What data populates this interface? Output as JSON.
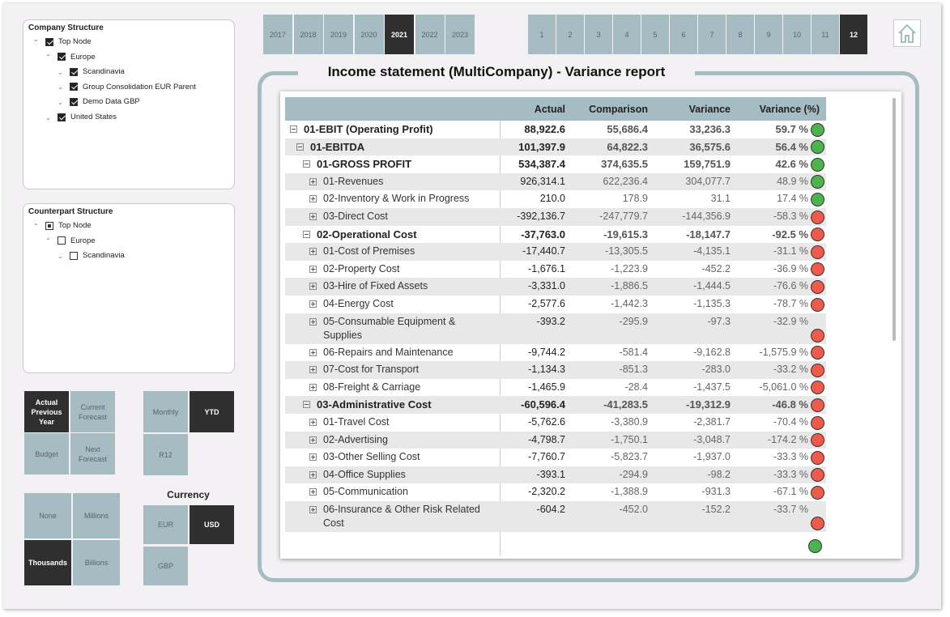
{
  "company_structure": {
    "title": "Company Structure",
    "nodes": [
      {
        "label": "Top Node",
        "level": 0,
        "expanded": true,
        "checked": "yes"
      },
      {
        "label": "Europe",
        "level": 1,
        "expanded": true,
        "checked": "yes"
      },
      {
        "label": "Scandinavia",
        "level": 2,
        "expanded": false,
        "checked": "yes"
      },
      {
        "label": "Group Consolidation EUR Parent",
        "level": 2,
        "expanded": false,
        "checked": "yes"
      },
      {
        "label": "Demo Data GBP",
        "level": 2,
        "expanded": false,
        "checked": "yes"
      },
      {
        "label": "United States",
        "level": 1,
        "expanded": false,
        "checked": "yes"
      }
    ]
  },
  "counterpart_structure": {
    "title": "Counterpart Structure",
    "nodes": [
      {
        "label": "Top Node",
        "level": 0,
        "expanded": true,
        "checked": "partial"
      },
      {
        "label": "Europe",
        "level": 1,
        "expanded": true,
        "checked": "no"
      },
      {
        "label": "Scandinavia",
        "level": 2,
        "expanded": false,
        "checked": "no"
      }
    ]
  },
  "years": {
    "options": [
      "2017",
      "2018",
      "2019",
      "2020",
      "2021",
      "2022",
      "2023"
    ],
    "selected": 4
  },
  "months": {
    "options": [
      "1",
      "2",
      "3",
      "4",
      "5",
      "6",
      "7",
      "8",
      "9",
      "10",
      "11",
      "12"
    ],
    "selected": 11
  },
  "scenario": {
    "options": [
      "Actual Previous Year",
      "Current Forecast",
      "Budget",
      "Next Forecast"
    ],
    "selected": 0
  },
  "period": {
    "options": [
      "Monthly",
      "YTD",
      "R12"
    ],
    "selected": 1
  },
  "scale": {
    "options": [
      "None",
      "Millions",
      "Thousands",
      "Billions"
    ],
    "selected": 2
  },
  "currency": {
    "title": "Currency",
    "options": [
      "EUR",
      "USD",
      "GBP"
    ],
    "selected": 1
  },
  "report": {
    "title": "Income statement (MultiCompany) - Variance report",
    "columns": [
      "Actual",
      "Comparison",
      "Variance",
      "Variance (%)"
    ],
    "rows": [
      {
        "label": "01-EBIT (Operating Profit)",
        "level": 0,
        "bold": true,
        "expanded": true,
        "cells": [
          "88,922.6",
          "55,686.4",
          "33,236.3",
          "59.7 %"
        ],
        "status": "green"
      },
      {
        "label": "01-EBITDA",
        "level": 1,
        "bold": true,
        "expanded": true,
        "cells": [
          "101,397.9",
          "64,822.3",
          "36,575.6",
          "56.4 %"
        ],
        "status": "green"
      },
      {
        "label": "01-GROSS PROFIT",
        "level": 2,
        "bold": true,
        "expanded": true,
        "cells": [
          "534,387.4",
          "374,635.5",
          "159,751.9",
          "42.6 %"
        ],
        "status": "green"
      },
      {
        "label": "01-Revenues",
        "level": 3,
        "bold": false,
        "expanded": false,
        "cells": [
          "926,314.1",
          "622,236.4",
          "304,077.7",
          "48.9 %"
        ],
        "status": "green"
      },
      {
        "label": "02-Inventory & Work in Progress",
        "level": 3,
        "bold": false,
        "expanded": false,
        "cells": [
          "210.0",
          "178.9",
          "31.1",
          "17.4 %"
        ],
        "status": "green"
      },
      {
        "label": "03-Direct Cost",
        "level": 3,
        "bold": false,
        "expanded": false,
        "cells": [
          "-392,136.7",
          "-247,779.7",
          "-144,356.9",
          "-58.3 %"
        ],
        "status": "red"
      },
      {
        "label": "02-Operational Cost",
        "level": 2,
        "bold": true,
        "expanded": true,
        "cells": [
          "-37,763.0",
          "-19,615.3",
          "-18,147.7",
          "-92.5 %"
        ],
        "status": "red"
      },
      {
        "label": "01-Cost of Premises",
        "level": 3,
        "bold": false,
        "expanded": false,
        "cells": [
          "-17,440.7",
          "-13,305.5",
          "-4,135.1",
          "-31.1 %"
        ],
        "status": "red"
      },
      {
        "label": "02-Property Cost",
        "level": 3,
        "bold": false,
        "expanded": false,
        "cells": [
          "-1,676.1",
          "-1,223.9",
          "-452.2",
          "-36.9 %"
        ],
        "status": "red"
      },
      {
        "label": "03-Hire of Fixed Assets",
        "level": 3,
        "bold": false,
        "expanded": false,
        "cells": [
          "-3,331.0",
          "-1,886.5",
          "-1,444.5",
          "-76.6 %"
        ],
        "status": "red"
      },
      {
        "label": "04-Energy Cost",
        "level": 3,
        "bold": false,
        "expanded": false,
        "cells": [
          "-2,577.6",
          "-1,442.3",
          "-1,135.3",
          "-78.7 %"
        ],
        "status": "red"
      },
      {
        "label": "05-Consumable Equipment & Supplies",
        "level": 3,
        "bold": false,
        "expanded": false,
        "cells": [
          "-393.2",
          "-295.9",
          "-97.3",
          "-32.9 %"
        ],
        "status": "red"
      },
      {
        "label": "06-Repairs and Maintenance",
        "level": 3,
        "bold": false,
        "expanded": false,
        "cells": [
          "-9,744.2",
          "-581.4",
          "-9,162.8",
          "-1,575.9 %"
        ],
        "status": "red"
      },
      {
        "label": "07-Cost for Transport",
        "level": 3,
        "bold": false,
        "expanded": false,
        "cells": [
          "-1,134.3",
          "-851.3",
          "-283.0",
          "-33.2 %"
        ],
        "status": "red"
      },
      {
        "label": "08-Freight & Carriage",
        "level": 3,
        "bold": false,
        "expanded": false,
        "cells": [
          "-1,465.9",
          "-28.4",
          "-1,437.5",
          "-5,061.0 %"
        ],
        "status": "red"
      },
      {
        "label": "03-Administrative Cost",
        "level": 2,
        "bold": true,
        "expanded": true,
        "cells": [
          "-60,596.4",
          "-41,283.5",
          "-19,312.9",
          "-46.8 %"
        ],
        "status": "red"
      },
      {
        "label": "01-Travel Cost",
        "level": 3,
        "bold": false,
        "expanded": false,
        "cells": [
          "-5,762.6",
          "-3,380.9",
          "-2,381.7",
          "-70.4 %"
        ],
        "status": "red"
      },
      {
        "label": "02-Advertising",
        "level": 3,
        "bold": false,
        "expanded": false,
        "cells": [
          "-4,798.7",
          "-1,750.1",
          "-3,048.7",
          "-174.2 %"
        ],
        "status": "red"
      },
      {
        "label": "03-Other Selling Cost",
        "level": 3,
        "bold": false,
        "expanded": false,
        "cells": [
          "-7,760.7",
          "-5,823.7",
          "-1,937.0",
          "-33.3 %"
        ],
        "status": "red"
      },
      {
        "label": "04-Office Supplies",
        "level": 3,
        "bold": false,
        "expanded": false,
        "cells": [
          "-393.1",
          "-294.9",
          "-98.2",
          "-33.3 %"
        ],
        "status": "red"
      },
      {
        "label": "05-Communication",
        "level": 3,
        "bold": false,
        "expanded": false,
        "cells": [
          "-2,320.2",
          "-1,388.9",
          "-931.3",
          "-67.1 %"
        ],
        "status": "red"
      },
      {
        "label": "06-Insurance & Other Risk Related Cost",
        "level": 3,
        "bold": false,
        "expanded": false,
        "cells": [
          "-604.2",
          "-452.0",
          "-152.2",
          "-33.7 %"
        ],
        "status": "red"
      }
    ],
    "total_status": "green"
  }
}
